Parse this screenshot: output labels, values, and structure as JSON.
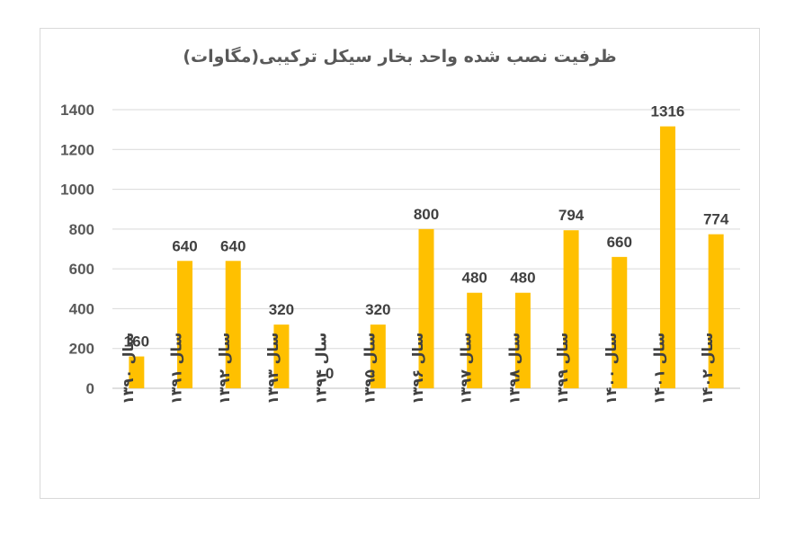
{
  "chart_data": {
    "type": "bar",
    "title": "ظرفیت نصب شده واحد بخار سیکل ترکیبی(مگاوات)",
    "categories": [
      "سال ۱۳۹۰",
      "سال ۱۳۹۱",
      "سال ۱۳۹۲",
      "سال ۱۳۹۳",
      "سال ۱۳۹۴",
      "سال ۱۳۹۵",
      "سال ۱۳۹۶",
      "سال ۱۳۹۷",
      "سال ۱۳۹۸",
      "سال ۱۳۹۹",
      "سال ۱۴۰۰",
      "سال ۱۴۰۱",
      "سال ۱۴۰۲"
    ],
    "values": [
      160,
      640,
      640,
      320,
      0,
      320,
      800,
      480,
      480,
      794,
      660,
      1316,
      774
    ],
    "yticks": [
      0,
      200,
      400,
      600,
      800,
      1000,
      1200,
      1400
    ],
    "ylim": [
      0,
      1400
    ],
    "grid": true,
    "bar_color": "#FFC000"
  }
}
